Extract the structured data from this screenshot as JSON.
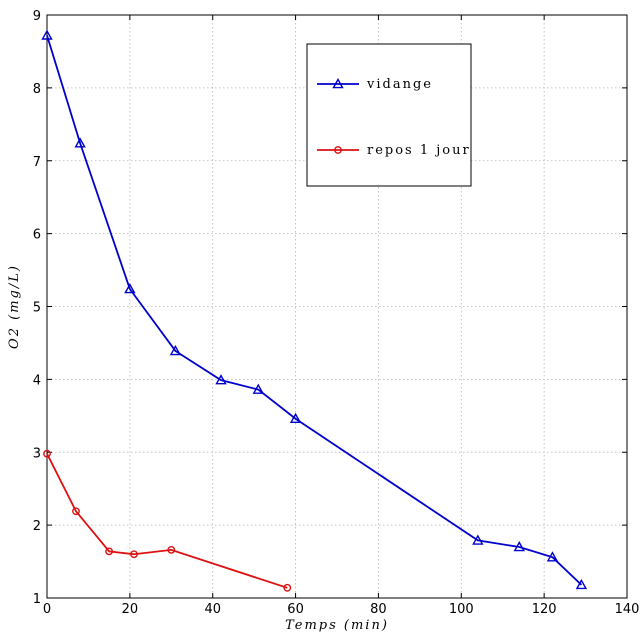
{
  "chart_data": {
    "type": "line",
    "xlabel": "Temps (min)",
    "ylabel": "O2 (mg/L)",
    "xlim": [
      0,
      140
    ],
    "ylim": [
      1,
      9
    ],
    "xticks": [
      "0",
      "20",
      "40",
      "60",
      "80",
      "100",
      "120",
      "140"
    ],
    "yticks": [
      "1",
      "2",
      "3",
      "4",
      "5",
      "6",
      "7",
      "8",
      "9"
    ],
    "grid": true,
    "legend_position": "top-right",
    "series": [
      {
        "name": "vidange",
        "color": "#0000cc",
        "marker": "triangle",
        "x": [
          0,
          8,
          20,
          31,
          42,
          51,
          60,
          104,
          114,
          122,
          129
        ],
        "y": [
          8.72,
          7.24,
          5.24,
          4.39,
          3.99,
          3.86,
          3.46,
          1.79,
          1.7,
          1.56,
          1.18
        ]
      },
      {
        "name": "repos 1 jour",
        "color": "#dd1111",
        "marker": "circle",
        "x": [
          0,
          7,
          15,
          21,
          30,
          58
        ],
        "y": [
          2.98,
          2.19,
          1.64,
          1.6,
          1.66,
          1.14
        ]
      }
    ]
  }
}
